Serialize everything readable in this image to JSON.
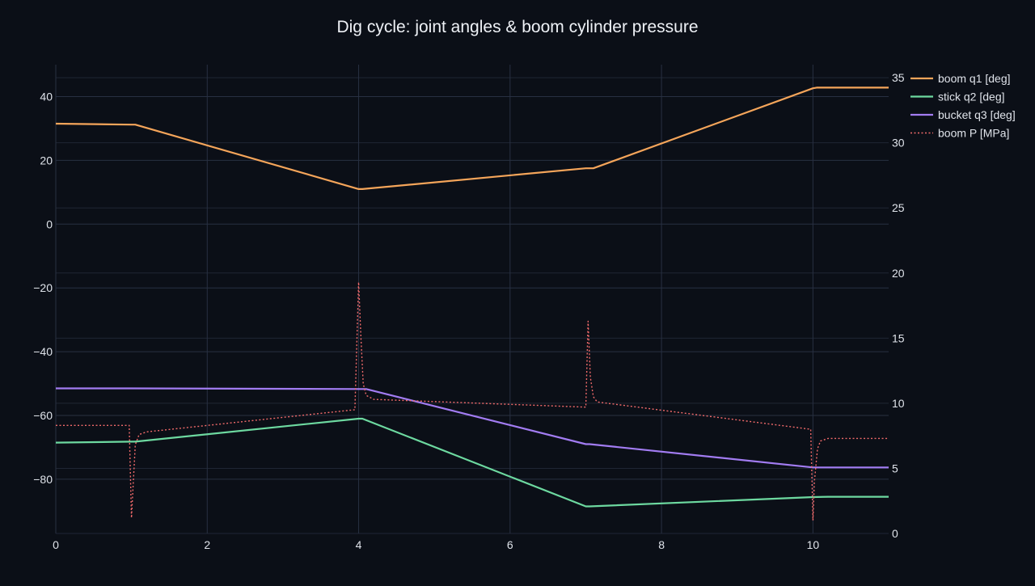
{
  "colors": {
    "background": "#0b0f17",
    "grid": "#283042",
    "axis_text": "#dfe3ea",
    "title_text": "#eef1f6"
  },
  "chart_data": {
    "type": "line",
    "title": "Dig cycle: joint angles & boom cylinder pressure",
    "xlabel": "",
    "ylabel": "",
    "y2label": "",
    "xlim": [
      0,
      11
    ],
    "ylim": [
      -97,
      50
    ],
    "y2lim": [
      0,
      36
    ],
    "grid": true,
    "legend_position": "top-right",
    "x_ticks": [
      0,
      2,
      4,
      6,
      8,
      10
    ],
    "y_ticks": [
      -80,
      -60,
      -40,
      -20,
      0,
      20,
      40
    ],
    "y2_ticks": [
      0,
      5,
      10,
      15,
      20,
      25,
      30,
      35
    ],
    "series": [
      {
        "name": "boom q1 [deg]",
        "axis": "y",
        "color": "#f5a55a",
        "dash": "solid",
        "x": [
          0,
          1,
          1.05,
          4,
          4.05,
          7,
          7.1,
          10,
          10.05,
          11
        ],
        "y": [
          31.5,
          31.2,
          31.2,
          11.0,
          11.0,
          17.5,
          17.5,
          42.6,
          42.8,
          42.8
        ]
      },
      {
        "name": "stick q2 [deg]",
        "axis": "y",
        "color": "#6dd9a0",
        "dash": "solid",
        "x": [
          0,
          1,
          1.05,
          4,
          4.05,
          7,
          7.05,
          10,
          10.2,
          11
        ],
        "y": [
          -68.5,
          -68.2,
          -68.2,
          -61.0,
          -61.0,
          -88.5,
          -88.5,
          -85.6,
          -85.5,
          -85.5
        ]
      },
      {
        "name": "bucket q3 [deg]",
        "axis": "y",
        "color": "#a27cf2",
        "dash": "solid",
        "x": [
          0,
          1,
          4,
          4.1,
          7,
          7.05,
          10,
          10.1,
          11
        ],
        "y": [
          -51.5,
          -51.5,
          -51.7,
          -51.7,
          -69.0,
          -69.0,
          -76.3,
          -76.3,
          -76.3
        ]
      },
      {
        "name": "boom P [MPa]",
        "axis": "y2",
        "color": "#f06a6a",
        "dash": "dot",
        "x": [
          0,
          0.97,
          1.0,
          1.02,
          1.05,
          1.1,
          1.2,
          3.95,
          4.0,
          4.03,
          4.06,
          4.1,
          4.2,
          7.0,
          7.03,
          7.06,
          7.1,
          7.15,
          9.97,
          10.0,
          10.02,
          10.06,
          10.1,
          10.2,
          11
        ],
        "y": [
          8.3,
          8.3,
          1.2,
          3.5,
          6.8,
          7.6,
          7.8,
          9.5,
          19.3,
          15.0,
          11.5,
          10.6,
          10.3,
          9.7,
          16.3,
          12.0,
          10.5,
          10.1,
          8.0,
          1.0,
          4.0,
          6.5,
          7.1,
          7.3,
          7.3
        ]
      }
    ]
  }
}
